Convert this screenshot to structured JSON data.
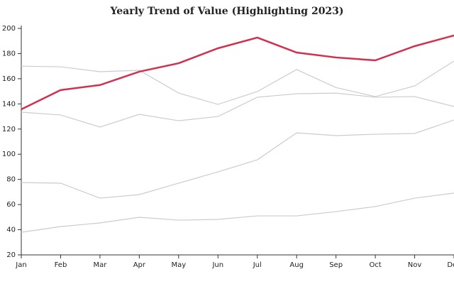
{
  "chart_data": {
    "type": "line",
    "title": "Yearly Trend of Value (Highlighting 2023)",
    "categories": [
      "Jan",
      "Feb",
      "Mar",
      "Apr",
      "May",
      "Jun",
      "Jul",
      "Aug",
      "Sep",
      "Oct",
      "Nov",
      "Dec"
    ],
    "series": [
      {
        "color": "#cccccc",
        "values": [
          170,
          169.5,
          165.6,
          166.7,
          148.6,
          139.6,
          149.8,
          167.3,
          153,
          145.8,
          154.3,
          174
        ]
      },
      {
        "color": "#cccccc",
        "values": [
          133.4,
          131.2,
          121.6,
          131.7,
          126.6,
          130,
          145.3,
          148.1,
          148.6,
          145.3,
          145.8,
          137.9
        ]
      },
      {
        "color": "#cccccc",
        "values": [
          77.5,
          77,
          65.1,
          67.9,
          77,
          86,
          95.6,
          117,
          114.8,
          115.9,
          116.5,
          127.2
        ]
      },
      {
        "color": "#cccccc",
        "values": [
          38,
          42.5,
          45.4,
          49.9,
          47.6,
          48.2,
          51,
          51,
          54.4,
          58.4,
          65.1,
          69.1
        ]
      },
      {
        "color": "#d1304f",
        "values": [
          135.7,
          151,
          155,
          165.6,
          172.3,
          184.2,
          192.7,
          180.8,
          176.9,
          174.6,
          185.9,
          194.4
        ]
      }
    ],
    "ylim": [
      20,
      200
    ],
    "yticks": [
      20,
      40,
      60,
      80,
      100,
      120,
      140,
      160,
      180,
      200
    ]
  }
}
